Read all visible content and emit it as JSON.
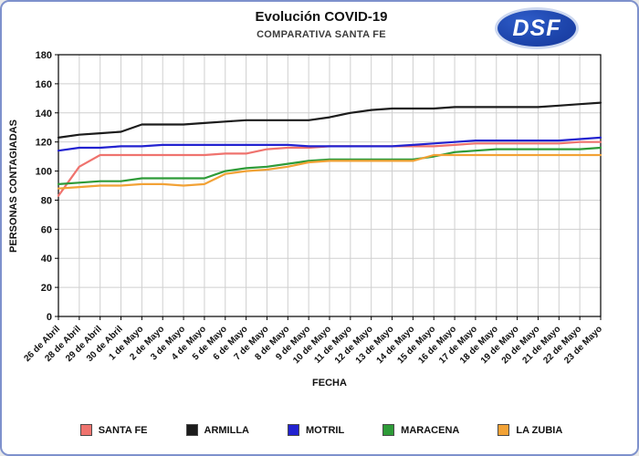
{
  "logo": {
    "text": "DSF",
    "bg_color": "#1e46ad"
  },
  "chart_data": {
    "type": "line",
    "title": "Evolución COVID-19",
    "subtitle": "COMPARATIVA SANTA FE",
    "xlabel": "FECHA",
    "ylabel": "PERSONAS CONTAGIADAS",
    "ylim": [
      0,
      180
    ],
    "ytick_step": 20,
    "grid": true,
    "legend_position": "bottom",
    "categories": [
      "26 de Abril",
      "28 de Abril",
      "29 de Abril",
      "30 de Abril",
      "1 de Mayo",
      "2 de Mayo",
      "3 de Mayo",
      "4 de Mayo",
      "5 de Mayo",
      "6 de Mayo",
      "7 de Mayo",
      "8 de Mayo",
      "9 de Mayo",
      "10 de Mayo",
      "11 de Mayo",
      "12 de Mayo",
      "13 de Mayo",
      "14 de Mayo",
      "15 de Mayo",
      "16 de Mayo",
      "17 de Mayo",
      "18 de Mayo",
      "19 de Mayo",
      "20 de Mayo",
      "21 de Mayo",
      "22 de Mayo",
      "23 de Mayo"
    ],
    "series": [
      {
        "name": "SANTA FE",
        "color": "#ef736e",
        "values": [
          83,
          103,
          111,
          111,
          111,
          111,
          111,
          111,
          112,
          112,
          115,
          116,
          116,
          117,
          117,
          117,
          117,
          117,
          117,
          118,
          119,
          119,
          119,
          119,
          119,
          120,
          120
        ]
      },
      {
        "name": "ARMILLA",
        "color": "#1c1c1c",
        "values": [
          123,
          125,
          126,
          127,
          132,
          132,
          132,
          133,
          134,
          135,
          135,
          135,
          135,
          137,
          140,
          142,
          143,
          143,
          143,
          144,
          144,
          144,
          144,
          144,
          145,
          146,
          147
        ]
      },
      {
        "name": "MOTRIL",
        "color": "#2222d0",
        "values": [
          114,
          116,
          116,
          117,
          117,
          118,
          118,
          118,
          118,
          118,
          118,
          118,
          117,
          117,
          117,
          117,
          117,
          118,
          119,
          120,
          121,
          121,
          121,
          121,
          121,
          122,
          123
        ]
      },
      {
        "name": "MARACENA",
        "color": "#2e9b38",
        "values": [
          91,
          92,
          93,
          93,
          95,
          95,
          95,
          95,
          100,
          102,
          103,
          105,
          107,
          108,
          108,
          108,
          108,
          108,
          110,
          113,
          114,
          115,
          115,
          115,
          115,
          115,
          116
        ]
      },
      {
        "name": "LA ZUBIA",
        "color": "#f2a236",
        "values": [
          88,
          89,
          90,
          90,
          91,
          91,
          90,
          91,
          98,
          100,
          101,
          103,
          106,
          107,
          107,
          107,
          107,
          107,
          111,
          111,
          111,
          111,
          111,
          111,
          111,
          111,
          111
        ]
      }
    ]
  }
}
